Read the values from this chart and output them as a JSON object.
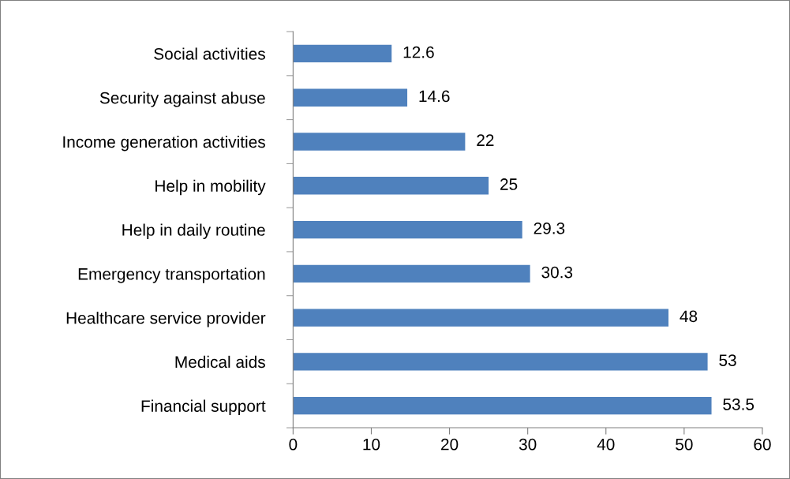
{
  "chart_data": {
    "type": "bar",
    "orientation": "horizontal",
    "categories": [
      "Social activities",
      "Security against abuse",
      "Income generation activities",
      "Help in mobility",
      "Help in daily routine",
      "Emergency transportation",
      "Healthcare service provider",
      "Medical aids",
      "Financial support"
    ],
    "values": [
      12.6,
      14.6,
      22,
      25,
      29.3,
      30.3,
      48,
      53,
      53.5
    ],
    "color": "#4f81bd",
    "xlim": [
      0,
      60
    ],
    "xticks": [
      0,
      10,
      20,
      30,
      40,
      50,
      60
    ],
    "data_labels": true,
    "grid": false,
    "legend": false
  }
}
